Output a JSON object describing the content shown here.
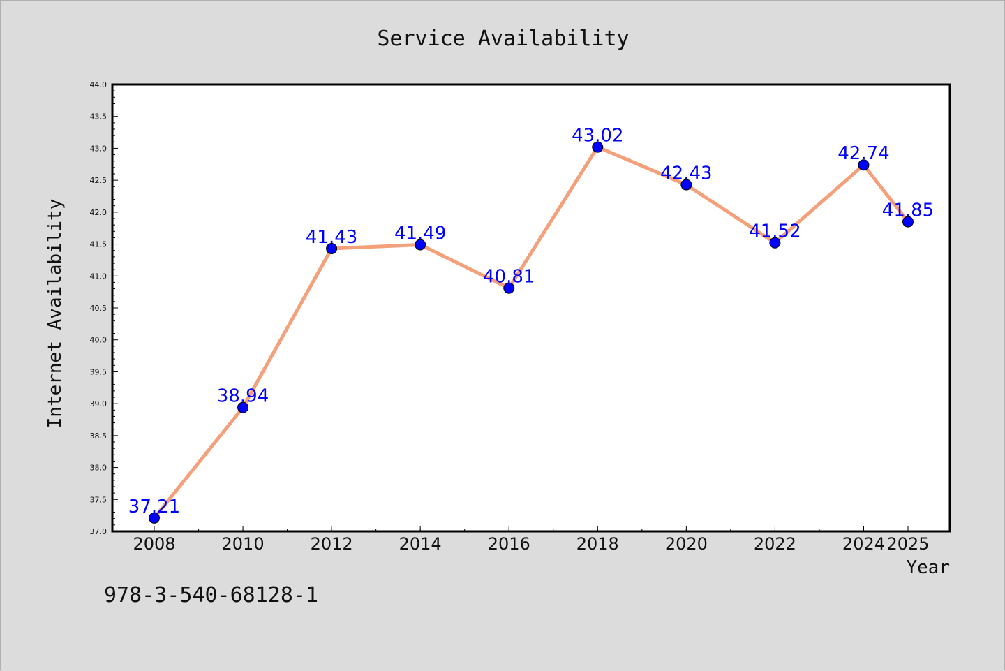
{
  "chart_data": {
    "type": "line",
    "title": "Service Availability",
    "xlabel": "Year",
    "ylabel": "Internet Availability",
    "categories": [
      "2008",
      "2010",
      "2012",
      "2014",
      "2016",
      "2018",
      "2020",
      "2022",
      "2024",
      "2025"
    ],
    "series": [
      {
        "values": [
          37.21,
          38.94,
          41.43,
          41.49,
          40.81,
          43.02,
          42.43,
          41.52,
          42.74,
          41.85
        ],
        "line_color": "#f4a07a",
        "marker_color": "#0000ff",
        "label_color": "#0000ff"
      }
    ],
    "ylim": [
      37.0,
      44.0
    ],
    "yticks": [
      "37.0",
      "37.5",
      "38.0",
      "38.5",
      "39.0",
      "39.5",
      "40.0",
      "40.5",
      "41.0",
      "41.5",
      "42.0",
      "42.5",
      "43.0",
      "43.5",
      "44.0"
    ],
    "grid": false,
    "legend": "none"
  },
  "footer": {
    "code": "978-3-540-68128-1"
  }
}
